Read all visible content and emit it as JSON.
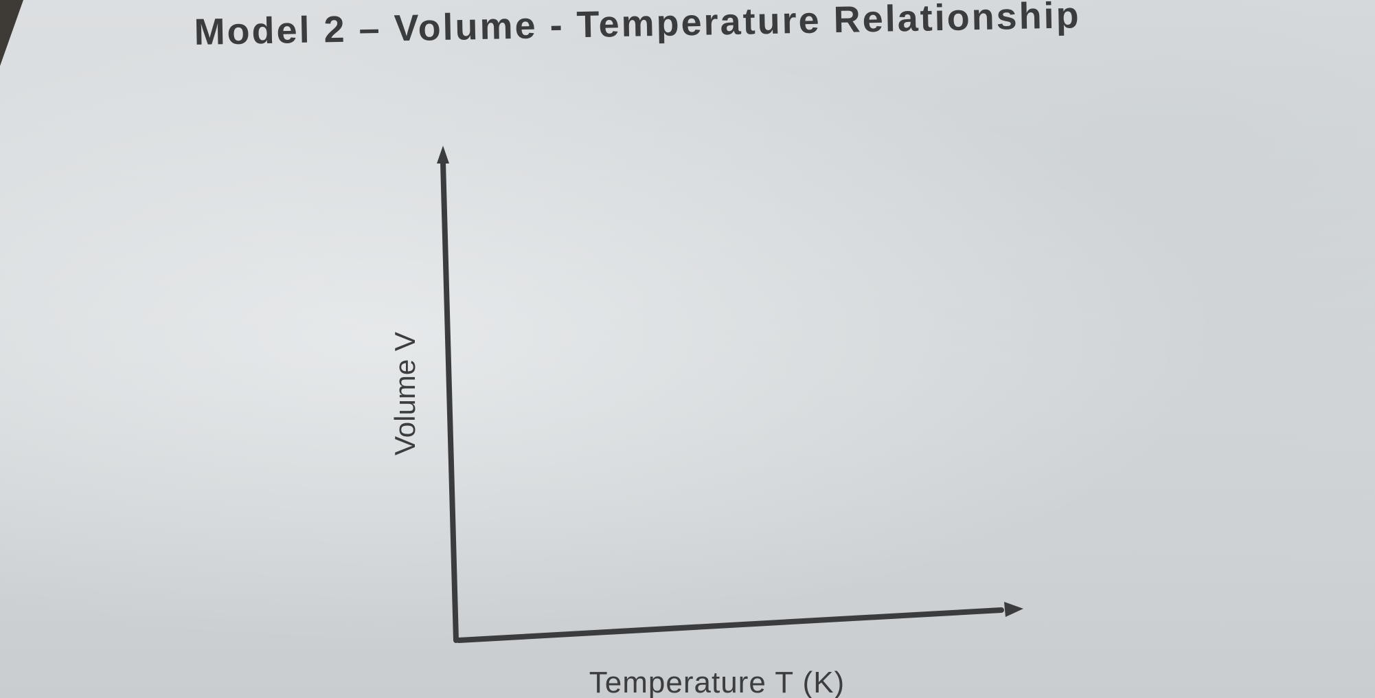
{
  "page": {
    "title": "Model 2 – Volume - Temperature Relationship"
  },
  "chart_data": {
    "type": "line",
    "title": "",
    "xlabel": "Temperature T (K)",
    "ylabel": "Volume V",
    "series": [],
    "grid": false,
    "legend": "none"
  },
  "colors": {
    "ink": "#3a3c3e",
    "paper": "#d6d9db"
  }
}
